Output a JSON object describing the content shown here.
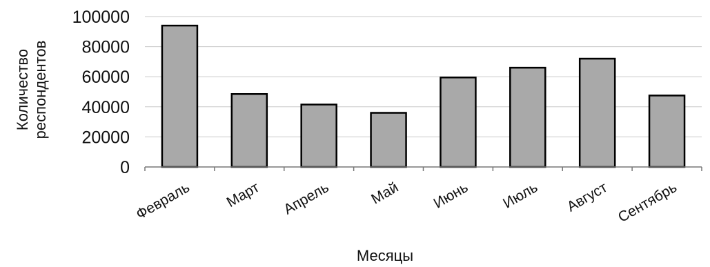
{
  "chart_data": {
    "type": "bar",
    "categories": [
      "Февраль",
      "Март",
      "Апрель",
      "Май",
      "Июнь",
      "Июль",
      "Август",
      "Сентябрь"
    ],
    "values": [
      94000,
      48500,
      41500,
      36000,
      59500,
      66000,
      72000,
      47500
    ],
    "title": "",
    "xlabel": "Месяцы",
    "ylabel_lines": [
      "Количество",
      "респондентов"
    ],
    "ylim": [
      0,
      100000
    ],
    "yticks": [
      0,
      20000,
      40000,
      60000,
      80000,
      100000
    ],
    "grid": true,
    "legend": "none",
    "bar_color": "#a9a9a9",
    "bar_edge_color": "#000000",
    "grid_color": "#c8c8c8"
  }
}
